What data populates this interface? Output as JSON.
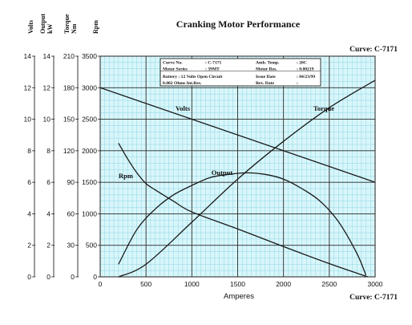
{
  "chart_data": {
    "type": "line",
    "title": "Cranking Motor Performance",
    "curve_label_top": "Curve: C-7171",
    "curve_label_bottom": "Curve: C-7171",
    "xlabel": "Amperes",
    "xlim": [
      0,
      3000
    ],
    "x_ticks": [
      0,
      500,
      1000,
      1500,
      2000,
      2500,
      3000
    ],
    "grid": true,
    "colors": {
      "plot_background": "#d8f6fa",
      "minor_grid": "#8fd6e6",
      "major_grid": "#2b2b2b",
      "curves": "#1a1a1a"
    },
    "axes": [
      {
        "label": "Volts",
        "lim": [
          0,
          14
        ],
        "ticks": [
          0,
          2,
          4,
          6,
          8,
          10,
          12,
          14
        ]
      },
      {
        "label": "Output kW",
        "lim": [
          0,
          14
        ],
        "ticks": [
          0,
          2,
          4,
          6,
          8,
          10,
          12,
          14
        ]
      },
      {
        "label": "Torque Nm",
        "lim": [
          0,
          210
        ],
        "ticks": [
          0,
          30,
          60,
          90,
          120,
          150,
          180,
          210
        ]
      },
      {
        "label": "Rpm",
        "lim": [
          0,
          3500
        ],
        "ticks": [
          0,
          500,
          1000,
          1500,
          2000,
          2500,
          3000,
          3500
        ]
      }
    ],
    "series": [
      {
        "name": "Volts",
        "axis": "Volts",
        "x": [
          0,
          3000
        ],
        "values": [
          12.0,
          6.0
        ]
      },
      {
        "name": "Torque",
        "axis": "Torque Nm",
        "x": [
          200,
          500,
          1000,
          1500,
          2000,
          2500,
          3000
        ],
        "values": [
          0,
          12,
          52,
          93,
          129,
          161,
          187
        ]
      },
      {
        "name": "Output",
        "axis": "Output kW",
        "x": [
          200,
          400,
          600,
          800,
          1000,
          1200,
          1400,
          1600,
          1800,
          2000,
          2200,
          2400,
          2600,
          2800,
          2900
        ],
        "values": [
          0.8,
          3.0,
          4.3,
          5.2,
          5.8,
          6.3,
          6.5,
          6.6,
          6.5,
          6.2,
          5.6,
          4.8,
          3.5,
          1.5,
          0.1
        ]
      },
      {
        "name": "Rpm",
        "axis": "Rpm",
        "x": [
          200,
          300,
          400,
          500,
          600,
          800,
          1000,
          1500,
          2000,
          2500,
          2920
        ],
        "values": [
          2120,
          1870,
          1650,
          1480,
          1380,
          1200,
          1030,
          760,
          480,
          210,
          0
        ]
      }
    ],
    "info_box": {
      "rows": [
        [
          "Curve No.",
          ": C-7171",
          "Amb. Temp.",
          ": 20C"
        ],
        [
          "Motor Series",
          ": 39MT",
          "Motor Res.",
          ": 0.00219"
        ],
        [
          "Battery : 12 Volts Open Circuit",
          "",
          "Issue Date",
          ": 04/23/99"
        ],
        [
          "0.002 Ohms Int.Res.",
          "",
          "Rev. Date",
          ":"
        ]
      ]
    }
  }
}
